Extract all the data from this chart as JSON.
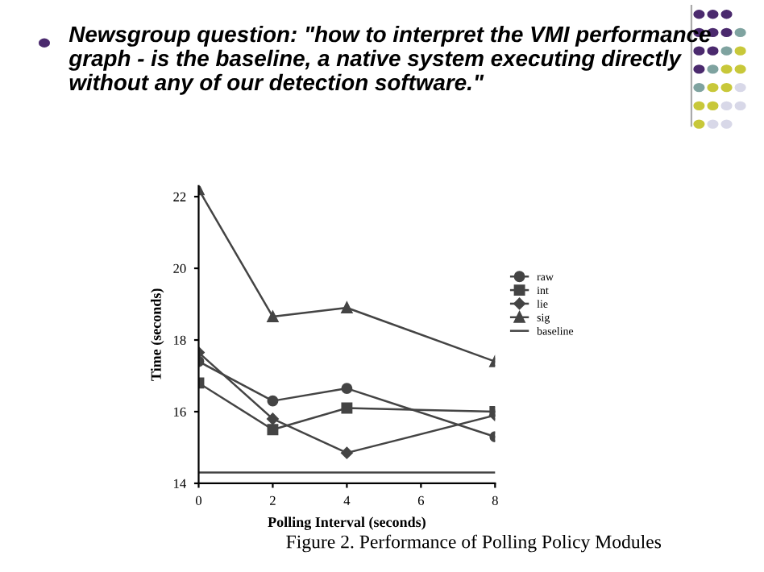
{
  "chart_data": {
    "type": "line",
    "title": "Newsgroup question: \"how to interpret the VMI performance graph - is the baseline, a native system executing directly without any of our detection software.\"",
    "xlabel": "Polling Interval (seconds)",
    "ylabel": "Time (seconds)",
    "annotations": [
      "Figure 2. Performance of Polling Policy Modules"
    ],
    "x": [
      0,
      2,
      4,
      8
    ],
    "series": [
      {
        "name": "raw",
        "color": "#444444",
        "marker": "circle",
        "values": [
          17.4,
          16.3,
          16.65,
          15.3
        ]
      },
      {
        "name": "int",
        "color": "#444444",
        "marker": "square",
        "values": [
          16.8,
          15.5,
          16.1,
          16.0
        ]
      },
      {
        "name": "lie",
        "color": "#444444",
        "marker": "diamond",
        "values": [
          17.65,
          15.8,
          14.85,
          15.9
        ]
      },
      {
        "name": "sig",
        "color": "#444444",
        "marker": "triangle",
        "values": [
          22.2,
          18.65,
          18.9,
          17.4
        ]
      },
      {
        "name": "baseline",
        "color": "#444444",
        "marker": "none",
        "values": [
          14.3,
          14.3,
          14.3,
          14.3
        ]
      }
    ],
    "xlim": [
      0,
      8
    ],
    "ylim": [
      14,
      22.3
    ],
    "xticks": [
      0,
      2,
      4,
      6,
      8
    ],
    "yticks": [
      14,
      16,
      18,
      20,
      22
    ],
    "grid": false,
    "legend": "right",
    "line_style": "solid"
  }
}
